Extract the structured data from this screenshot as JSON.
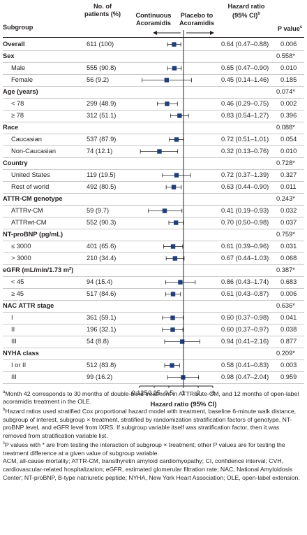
{
  "header": {
    "subgroup": "Subgroup",
    "npatients_1": "No. of",
    "npatients_2": "patients (%)",
    "continuous_1": "Continuous",
    "continuous_2": "Acoramidis",
    "placebo_1": "Placebo to",
    "placebo_2": "Acoramidis",
    "hr_1": "Hazard ratio",
    "hr_2": "(95% CI)",
    "hr_sup": "b",
    "pvalue": "P value",
    "pvalue_sup": "c"
  },
  "colors": {
    "marker": "#1f3f7a",
    "line": "#231f20",
    "separator": "#c9c9c9"
  },
  "chart_data": {
    "type": "forest",
    "xlabel": "Hazard ratio (95% CI)",
    "xscale": "log",
    "xlim": [
      0.125,
      4
    ],
    "xticks": [
      "0.125",
      "0.25",
      "0.5",
      "1",
      "2",
      "4"
    ],
    "reference_line": 1,
    "rows": [
      {
        "label": "Overall",
        "kind": "overall",
        "n": "611 (100)",
        "hr": 0.64,
        "lo": 0.47,
        "hi": 0.88,
        "hr_text": "0.64 (0.47–0.88)",
        "p": "0.006"
      },
      {
        "label": "Sex",
        "kind": "group",
        "p": "0.558*"
      },
      {
        "label": "Male",
        "kind": "item",
        "n": "555 (90.8)",
        "hr": 0.65,
        "lo": 0.47,
        "hi": 0.9,
        "hr_text": "0.65 (0.47–0.90)",
        "p": "0.010"
      },
      {
        "label": "Female",
        "kind": "item",
        "n": "56 (9.2)",
        "hr": 0.45,
        "lo": 0.14,
        "hi": 1.46,
        "hr_text": "0.45 (0.14–1.46)",
        "p": "0.185"
      },
      {
        "label": "Age (years)",
        "kind": "group",
        "p": "0.074*"
      },
      {
        "label": "< 78",
        "kind": "item",
        "n": "299 (48.9)",
        "hr": 0.46,
        "lo": 0.29,
        "hi": 0.75,
        "hr_text": "0.46 (0.29–0.75)",
        "p": "0.002"
      },
      {
        "label": "≥ 78",
        "kind": "item",
        "n": "312 (51.1)",
        "hr": 0.83,
        "lo": 0.54,
        "hi": 1.27,
        "hr_text": "0.83 (0.54–1.27)",
        "p": "0.396"
      },
      {
        "label": "Race",
        "kind": "group",
        "p": "0.088*"
      },
      {
        "label": "Caucasian",
        "kind": "item",
        "n": "537 (87.9)",
        "hr": 0.72,
        "lo": 0.51,
        "hi": 1.01,
        "hr_text": "0.72 (0.51–1.01)",
        "p": "0.054"
      },
      {
        "label": "Non-Caucasian",
        "kind": "item",
        "n": "74 (12.1)",
        "hr": 0.32,
        "lo": 0.13,
        "hi": 0.76,
        "hr_text": "0.32 (0.13–0.76)",
        "p": "0.010"
      },
      {
        "label": "Country",
        "kind": "group",
        "p": "0.728*"
      },
      {
        "label": "United States",
        "kind": "item",
        "n": "119 (19.5)",
        "hr": 0.72,
        "lo": 0.37,
        "hi": 1.39,
        "hr_text": "0.72 (0.37–1.39)",
        "p": "0.327"
      },
      {
        "label": "Rest of world",
        "kind": "item",
        "n": "492 (80.5)",
        "hr": 0.63,
        "lo": 0.44,
        "hi": 0.9,
        "hr_text": "0.63 (0.44–0.90)",
        "p": "0.011"
      },
      {
        "label": "ATTR-CM genotype",
        "kind": "group",
        "p": "0.243*"
      },
      {
        "label": "ATTRv-CM",
        "kind": "item",
        "n": "59 (9.7)",
        "hr": 0.41,
        "lo": 0.19,
        "hi": 0.93,
        "hr_text": "0.41 (0.19–0.93)",
        "p": "0.032"
      },
      {
        "label": "ATTRwt-CM",
        "kind": "item",
        "n": "552 (90.3)",
        "hr": 0.7,
        "lo": 0.5,
        "hi": 0.98,
        "hr_text": "0.70 (0.50–0.98)",
        "p": "0.037"
      },
      {
        "label": "NT-proBNP (pg/mL)",
        "kind": "group",
        "p": "0.759*"
      },
      {
        "label": "≤ 3000",
        "kind": "item",
        "n": "401 (65.6)",
        "hr": 0.61,
        "lo": 0.39,
        "hi": 0.96,
        "hr_text": "0.61 (0.39–0.96)",
        "p": "0.031"
      },
      {
        "label": "> 3000",
        "kind": "item",
        "n": "210 (34.4)",
        "hr": 0.67,
        "lo": 0.44,
        "hi": 1.03,
        "hr_text": "0.67 (0.44–1.03)",
        "p": "0.068"
      },
      {
        "label": "eGFR (mL/min/1.73 m²)",
        "kind": "group",
        "p": "0.387*"
      },
      {
        "label": "< 45",
        "kind": "item",
        "n": "94 (15.4)",
        "hr": 0.86,
        "lo": 0.43,
        "hi": 1.74,
        "hr_text": "0.86 (0.43–1.74)",
        "p": "0.683"
      },
      {
        "label": "≥ 45",
        "kind": "item",
        "n": "517 (84.6)",
        "hr": 0.61,
        "lo": 0.43,
        "hi": 0.87,
        "hr_text": "0.61 (0.43–0.87)",
        "p": "0.006"
      },
      {
        "label": "NAC ATTR stage",
        "kind": "group",
        "p": "0.636*"
      },
      {
        "label": "I",
        "kind": "item",
        "n": "361 (59.1)",
        "hr": 0.6,
        "lo": 0.37,
        "hi": 0.98,
        "hr_text": "0.60 (0.37–0.98)",
        "p": "0.041"
      },
      {
        "label": "II",
        "kind": "item",
        "n": "196 (32.1)",
        "hr": 0.6,
        "lo": 0.37,
        "hi": 0.97,
        "hr_text": "0.60 (0.37–0.97)",
        "p": "0.038"
      },
      {
        "label": "III",
        "kind": "item",
        "n": "54 (8.8)",
        "hr": 0.94,
        "lo": 0.41,
        "hi": 2.16,
        "hr_text": "0.94 (0.41–2.16)",
        "p": "0.877"
      },
      {
        "label": "NYHA class",
        "kind": "group",
        "p": "0.209*"
      },
      {
        "label": "I or II",
        "kind": "item",
        "n": "512 (83.8)",
        "hr": 0.58,
        "lo": 0.41,
        "hi": 0.83,
        "hr_text": "0.58 (0.41–0.83)",
        "p": "0.003"
      },
      {
        "label": "III",
        "kind": "item",
        "n": "99 (16.2)",
        "hr": 0.98,
        "lo": 0.47,
        "hi": 2.04,
        "hr_text": "0.98 (0.47–2.04)",
        "p": "0.959"
      }
    ]
  },
  "footnotes": [
    {
      "sup": "a",
      "text": "Month 42 corresponds to 30 months of double-blind treatment in ATTRibute-CM, and 12 months of open-label acoramidis treatment in the OLE."
    },
    {
      "sup": "b",
      "text": "Hazard ratios used stratified Cox proportional hazard model with treatment, baseline 6-minute walk distance, subgroup of interest, subgroup × treatment, stratified by randomization stratification factors of genotype, NT-proBNP level, and eGFR level from IXRS. If subgroup variable itself was stratification factor, then it was removed from stratification variable list."
    },
    {
      "sup": "c",
      "text": "P values with * are from testing the interaction of subgroup × treatment; other P values are for testing the treatment difference at a given value of subgroup variable."
    },
    {
      "sup": "",
      "text": "ACM, all-cause mortality; ATTR-CM, transthyretin amyloid cardiomyopathy; CI, confidence interval; CVH, cardiovascular-related hospitalization; eGFR, estimated glomerular filtration rate; NAC, National Amyloidosis Center; NT-proBNP, B-type natriuretic peptide; NYHA, New York Heart Association; OLE, open-label extension."
    }
  ]
}
